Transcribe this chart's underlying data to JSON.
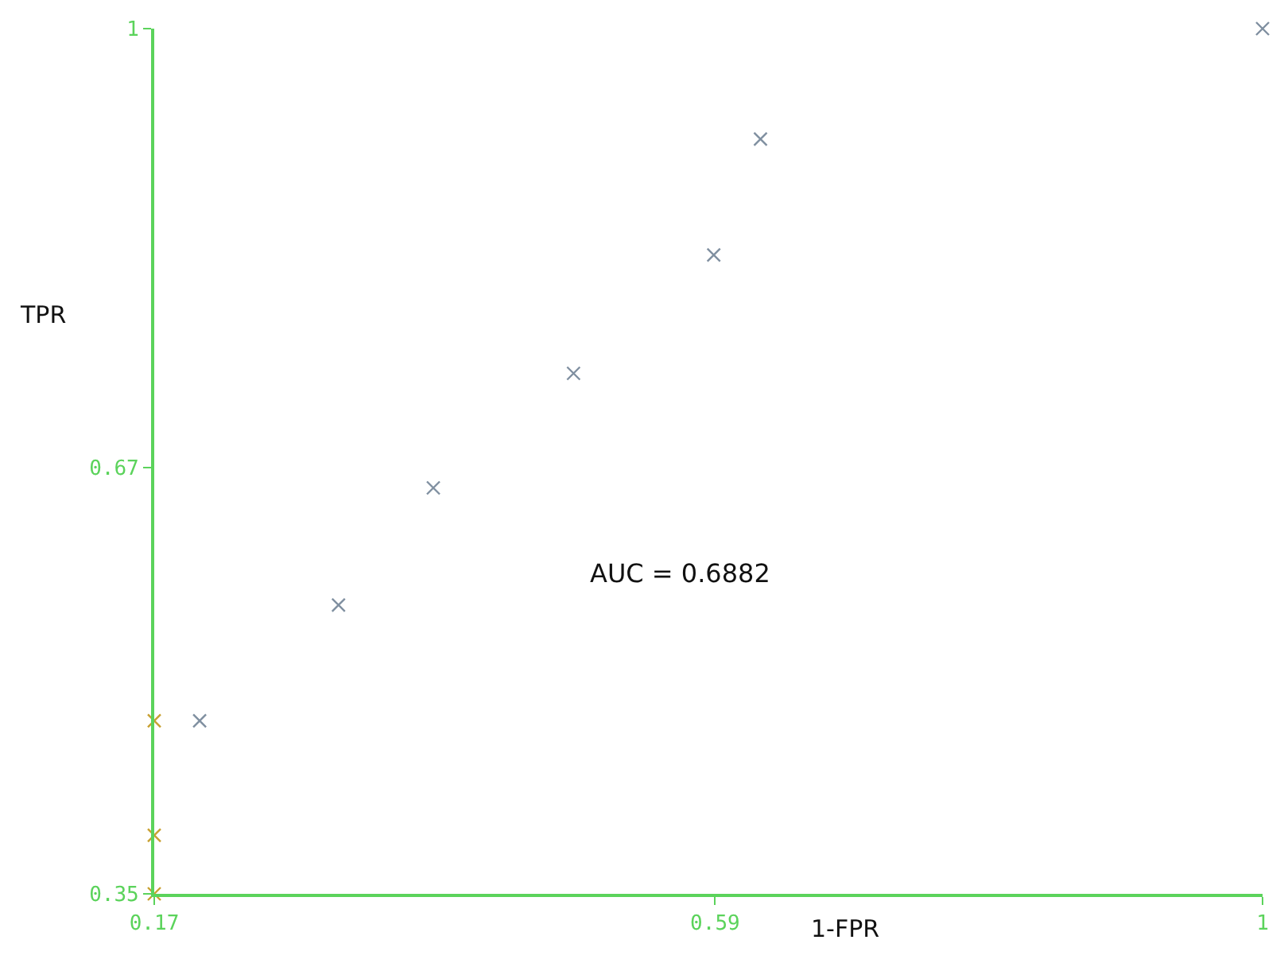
{
  "chart_data": {
    "type": "scatter",
    "xlabel": "1-FPR",
    "ylabel": "TPR",
    "annotations": [
      "AUC = 0.6882"
    ],
    "xlim": [
      0.17,
      1
    ],
    "ylim": [
      0.35,
      1
    ],
    "xticks": [
      0.17,
      0.59,
      1
    ],
    "yticks": [
      0.35,
      0.67,
      1
    ],
    "legend": false,
    "marker": "cross",
    "series": [
      {
        "color": "#7f8fa0",
        "x": [
          0.204,
          0.308,
          0.379,
          0.484,
          0.589,
          0.624,
          1
        ],
        "values": [
          0.48,
          0.567,
          0.655,
          0.741,
          0.83,
          0.917,
          1
        ]
      },
      {
        "color": "#c8a030",
        "x": [
          0.17,
          0.17,
          0.17
        ],
        "values": [
          0.48,
          0.394,
          0.35
        ]
      }
    ]
  }
}
